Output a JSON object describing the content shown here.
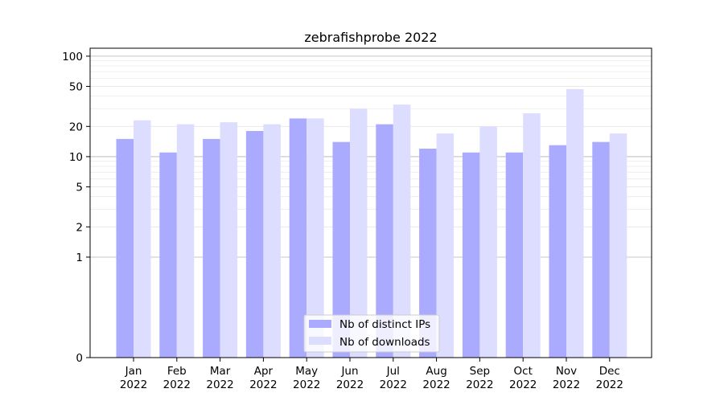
{
  "chart_data": {
    "type": "bar",
    "title": "zebrafishprobe 2022",
    "xlabel": "",
    "ylabel": "",
    "yscale": "symlog",
    "ylim": [
      0,
      120
    ],
    "yticks": [
      0,
      1,
      2,
      5,
      10,
      20,
      50,
      100
    ],
    "ytick_labels": [
      "0",
      "1",
      "2",
      "5",
      "10",
      "20",
      "50",
      "100"
    ],
    "categories": [
      [
        "Jan",
        "2022"
      ],
      [
        "Feb",
        "2022"
      ],
      [
        "Mar",
        "2022"
      ],
      [
        "Apr",
        "2022"
      ],
      [
        "May",
        "2022"
      ],
      [
        "Jun",
        "2022"
      ],
      [
        "Jul",
        "2022"
      ],
      [
        "Aug",
        "2022"
      ],
      [
        "Sep",
        "2022"
      ],
      [
        "Oct",
        "2022"
      ],
      [
        "Nov",
        "2022"
      ],
      [
        "Dec",
        "2022"
      ]
    ],
    "series": [
      {
        "name": "Nb of distinct IPs",
        "color": "#aaaaff",
        "values": [
          15,
          11,
          15,
          18,
          24,
          14,
          21,
          12,
          11,
          11,
          13,
          14
        ]
      },
      {
        "name": "Nb of downloads",
        "color": "#ddddff",
        "values": [
          23,
          21,
          22,
          21,
          24,
          30,
          33,
          17,
          20,
          27,
          47,
          17
        ]
      }
    ],
    "grid": true,
    "legend_position": "bottom-center"
  }
}
